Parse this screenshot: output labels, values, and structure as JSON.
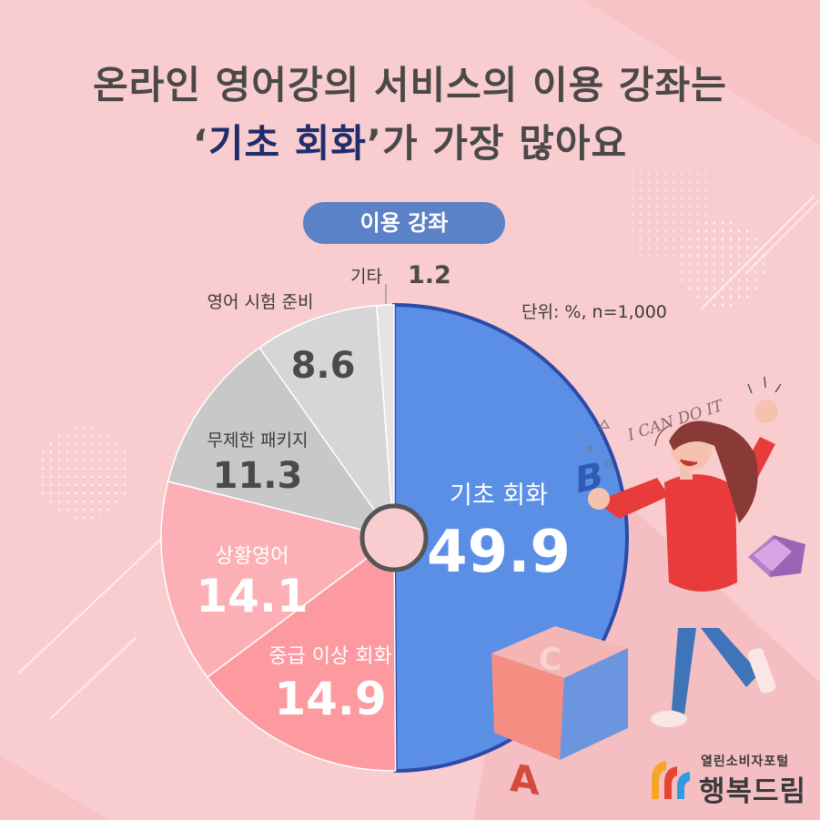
{
  "title": {
    "line1": "온라인 영어강의 서비스의 이용 강좌는",
    "line2_quote_open": "‘",
    "line2_highlight": "기초 회화",
    "line2_quote_close": "’",
    "line2_rest": "가 가장 많아요"
  },
  "pill_label": "이용 강좌",
  "unit_note": "단위: %, n=1,000",
  "colors": {
    "background": "#f9cdd0",
    "basic": "#5b8fe6",
    "pink_dark": "#fc9aa0",
    "pink_light": "#fcb0b5",
    "gray_mid": "#c8c8c8",
    "gray_light": "#d6d6d6",
    "gray_lightest": "#e4e4e4",
    "title_text": "#4a4848",
    "highlight_text": "#1f2d6b"
  },
  "chart_data": {
    "type": "pie",
    "start_angle_deg": 0,
    "direction": "clockwise",
    "slices": [
      {
        "label": "기초 회화",
        "value": 49.9,
        "color": "#5b8fe6",
        "label_color": "#ffffff",
        "value_color": "#ffffff"
      },
      {
        "label": "중급 이상 회화",
        "value": 14.9,
        "color": "#fc9aa0",
        "label_color": "#ffffff",
        "value_color": "#ffffff"
      },
      {
        "label": "상황영어",
        "value": 14.1,
        "color": "#fcb0b5",
        "label_color": "#ffffff",
        "value_color": "#ffffff"
      },
      {
        "label": "무제한 패키지",
        "value": 11.3,
        "color": "#c8c8c8",
        "label_color": "#3d3b3b",
        "value_color": "#4a4a4a"
      },
      {
        "label": "영어 시험 준비",
        "value": 8.6,
        "color": "#d6d6d6",
        "label_color": "#3d3b3b",
        "value_color": "#4a4a4a"
      },
      {
        "label": "기타",
        "value": 1.2,
        "color": "#e4e4e4",
        "label_color": "#3d3b3b",
        "value_color": "#4a4a4a"
      }
    ]
  },
  "illustration": {
    "speech_text": "I CAN DO IT",
    "cube_letters": [
      "A",
      "B",
      "C"
    ]
  },
  "logo": {
    "top_text": "열린소비자포털",
    "main_text": "행복드림"
  }
}
